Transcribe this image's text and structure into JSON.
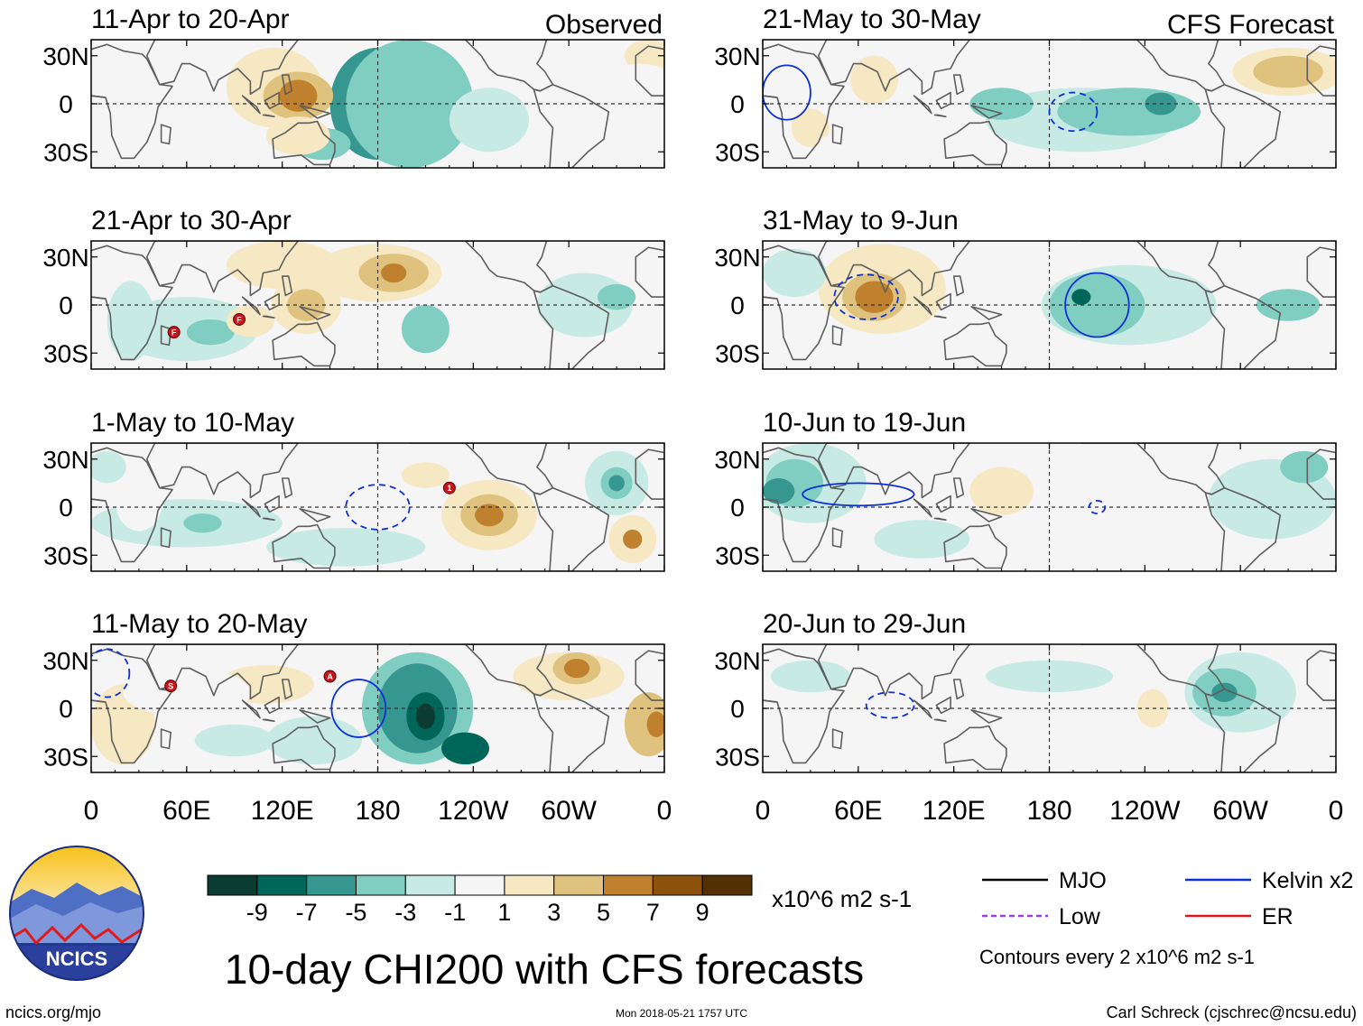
{
  "chart_data": {
    "type": "heatmap",
    "title": "10-day CHI200 with CFS forecasts",
    "variable": "CHI200",
    "units": "x10^6 m2 s-1",
    "observed_label": "Observed",
    "forecast_label": "CFS Forecast",
    "x_ticks": [
      "0",
      "60E",
      "120E",
      "180",
      "120W",
      "60W",
      "0"
    ],
    "x_tick_values": [
      0,
      60,
      120,
      180,
      240,
      300,
      360
    ],
    "y_ticks": [
      "30N",
      "0",
      "30S"
    ],
    "y_tick_values": [
      30,
      0,
      -30
    ],
    "xlim": [
      0,
      360
    ],
    "ylim": [
      -40,
      40
    ],
    "colorbar": {
      "labels": [
        "-9",
        "-7",
        "-5",
        "-3",
        "-1",
        "1",
        "3",
        "5",
        "7",
        "9"
      ],
      "levels": [
        -9,
        -7,
        -5,
        -3,
        -1,
        1,
        3,
        5,
        7,
        9
      ],
      "colors": [
        "#0b3c32",
        "#00665a",
        "#35978f",
        "#80cdc1",
        "#c7eae5",
        "#f5f5f5",
        "#f6e8c3",
        "#dfc27d",
        "#bf812d",
        "#8c510a",
        "#543005"
      ]
    },
    "panels": [
      {
        "period": "11-Apr to 20-Apr",
        "kind": "observed",
        "blobs": [
          {
            "lon": 180,
            "lat": 0,
            "rx": 30,
            "ry": 35,
            "v": -5
          },
          {
            "lon": 145,
            "lat": -25,
            "rx": 18,
            "ry": 10,
            "v": -3
          },
          {
            "lon": 205,
            "lat": 0,
            "rx": 16,
            "ry": 14,
            "v": -9
          },
          {
            "lon": 195,
            "lat": -10,
            "rx": 25,
            "ry": 20,
            "v": -5
          },
          {
            "lon": 210,
            "lat": 5,
            "rx": 22,
            "ry": 20,
            "v": -5
          },
          {
            "lon": 200,
            "lat": 0,
            "rx": 40,
            "ry": 40,
            "v": -3
          },
          {
            "lon": 250,
            "lat": -10,
            "rx": 25,
            "ry": 20,
            "v": -1
          },
          {
            "lon": 115,
            "lat": 10,
            "rx": 30,
            "ry": 25,
            "v": 3
          },
          {
            "lon": 130,
            "lat": 5,
            "rx": 22,
            "ry": 15,
            "v": 5
          },
          {
            "lon": 130,
            "lat": 5,
            "rx": 12,
            "ry": 10,
            "v": 7
          },
          {
            "lon": 130,
            "lat": -20,
            "rx": 20,
            "ry": 12,
            "v": 3
          },
          {
            "lon": 20,
            "lat": -10,
            "rx": 25,
            "ry": 20,
            "v": 1
          },
          {
            "lon": 320,
            "lat": 10,
            "rx": 25,
            "ry": 15,
            "v": 1
          },
          {
            "lon": 350,
            "lat": 30,
            "rx": 15,
            "ry": 10,
            "v": 3
          },
          {
            "lon": 345,
            "lat": 15,
            "rx": 20,
            "ry": 10,
            "v": 1
          }
        ],
        "contours": [],
        "storms": []
      },
      {
        "period": "21-Apr to 30-Apr",
        "kind": "observed",
        "blobs": [
          {
            "lon": 120,
            "lat": 25,
            "rx": 35,
            "ry": 15,
            "v": 3
          },
          {
            "lon": 180,
            "lat": 20,
            "rx": 40,
            "ry": 18,
            "v": 3
          },
          {
            "lon": 190,
            "lat": 20,
            "rx": 22,
            "ry": 12,
            "v": 5
          },
          {
            "lon": 190,
            "lat": 20,
            "rx": 8,
            "ry": 6,
            "v": 7
          },
          {
            "lon": 135,
            "lat": 0,
            "rx": 22,
            "ry": 18,
            "v": 3
          },
          {
            "lon": 135,
            "lat": 0,
            "rx": 12,
            "ry": 10,
            "v": 5
          },
          {
            "lon": 60,
            "lat": -15,
            "rx": 45,
            "ry": 20,
            "v": -1
          },
          {
            "lon": 75,
            "lat": -17,
            "rx": 15,
            "ry": 8,
            "v": -3
          },
          {
            "lon": 25,
            "lat": -10,
            "rx": 15,
            "ry": 25,
            "v": -1
          },
          {
            "lon": 210,
            "lat": -15,
            "rx": 15,
            "ry": 15,
            "v": -3
          },
          {
            "lon": 310,
            "lat": 0,
            "rx": 30,
            "ry": 20,
            "v": -1
          },
          {
            "lon": 330,
            "lat": 5,
            "rx": 12,
            "ry": 8,
            "v": -3
          },
          {
            "lon": 100,
            "lat": -10,
            "rx": 15,
            "ry": 10,
            "v": 3
          },
          {
            "lon": 270,
            "lat": 30,
            "rx": 30,
            "ry": 10,
            "v": 1
          }
        ],
        "contours": [],
        "storms": [
          {
            "lon": 52,
            "lat": -17,
            "label": "F"
          },
          {
            "lon": 93,
            "lat": -9,
            "label": "F"
          }
        ]
      },
      {
        "period": "1-May to 10-May",
        "kind": "observed",
        "blobs": [
          {
            "lon": 60,
            "lat": -10,
            "rx": 60,
            "ry": 15,
            "v": -1
          },
          {
            "lon": 70,
            "lat": -10,
            "rx": 12,
            "ry": 6,
            "v": -3
          },
          {
            "lon": 160,
            "lat": -25,
            "rx": 50,
            "ry": 12,
            "v": -1
          },
          {
            "lon": 190,
            "lat": 20,
            "rx": 45,
            "ry": 12,
            "v": 1
          },
          {
            "lon": 210,
            "lat": 20,
            "rx": 15,
            "ry": 8,
            "v": 3
          },
          {
            "lon": 250,
            "lat": -5,
            "rx": 30,
            "ry": 22,
            "v": 3
          },
          {
            "lon": 250,
            "lat": -5,
            "rx": 18,
            "ry": 13,
            "v": 5
          },
          {
            "lon": 250,
            "lat": -5,
            "rx": 9,
            "ry": 7,
            "v": 7
          },
          {
            "lon": 330,
            "lat": 15,
            "rx": 20,
            "ry": 20,
            "v": -1
          },
          {
            "lon": 330,
            "lat": 15,
            "rx": 10,
            "ry": 10,
            "v": -3
          },
          {
            "lon": 330,
            "lat": 15,
            "rx": 5,
            "ry": 5,
            "v": -5
          },
          {
            "lon": 340,
            "lat": -20,
            "rx": 15,
            "ry": 15,
            "v": 3
          },
          {
            "lon": 340,
            "lat": -20,
            "rx": 6,
            "ry": 6,
            "v": 7
          },
          {
            "lon": 30,
            "lat": 5,
            "rx": 15,
            "ry": 20,
            "v": 1
          },
          {
            "lon": 120,
            "lat": 30,
            "rx": 20,
            "ry": 8,
            "v": 1
          },
          {
            "lon": 10,
            "lat": 25,
            "rx": 12,
            "ry": 10,
            "v": -1
          }
        ],
        "contours": [
          {
            "lon": 180,
            "lat": 0,
            "rx": 20,
            "ry": 14,
            "style": "dashed"
          }
        ],
        "storms": [
          {
            "lon": 225,
            "lat": 12,
            "label": "1"
          }
        ]
      },
      {
        "period": "11-May to 20-May",
        "kind": "observed",
        "blobs": [
          {
            "lon": 205,
            "lat": 0,
            "rx": 35,
            "ry": 35,
            "v": -3
          },
          {
            "lon": 205,
            "lat": 0,
            "rx": 25,
            "ry": 28,
            "v": -5
          },
          {
            "lon": 210,
            "lat": -5,
            "rx": 12,
            "ry": 15,
            "v": -7
          },
          {
            "lon": 210,
            "lat": -5,
            "rx": 6,
            "ry": 8,
            "v": -9
          },
          {
            "lon": 235,
            "lat": -25,
            "rx": 15,
            "ry": 10,
            "v": -7
          },
          {
            "lon": 140,
            "lat": -20,
            "rx": 30,
            "ry": 15,
            "v": -1
          },
          {
            "lon": 110,
            "lat": 15,
            "rx": 30,
            "ry": 12,
            "v": 3
          },
          {
            "lon": 300,
            "lat": 20,
            "rx": 35,
            "ry": 15,
            "v": 3
          },
          {
            "lon": 305,
            "lat": 25,
            "rx": 15,
            "ry": 10,
            "v": 5
          },
          {
            "lon": 305,
            "lat": 25,
            "rx": 8,
            "ry": 6,
            "v": 7
          },
          {
            "lon": 20,
            "lat": -10,
            "rx": 20,
            "ry": 25,
            "v": 3
          },
          {
            "lon": 350,
            "lat": -10,
            "rx": 15,
            "ry": 20,
            "v": 5
          },
          {
            "lon": 355,
            "lat": -10,
            "rx": 6,
            "ry": 8,
            "v": 7
          },
          {
            "lon": 60,
            "lat": 10,
            "rx": 40,
            "ry": 15,
            "v": 1
          },
          {
            "lon": 90,
            "lat": -20,
            "rx": 25,
            "ry": 10,
            "v": -1
          }
        ],
        "contours": [
          {
            "lon": 168,
            "lat": 0,
            "rx": 17,
            "ry": 18,
            "style": "solid"
          },
          {
            "lon": 10,
            "lat": 22,
            "rx": 14,
            "ry": 15,
            "style": "dashed"
          }
        ],
        "storms": [
          {
            "lon": 50,
            "lat": 14,
            "label": "S"
          },
          {
            "lon": 150,
            "lat": 20,
            "label": "A"
          }
        ]
      },
      {
        "period": "21-May to 30-May",
        "kind": "forecast",
        "blobs": [
          {
            "lon": 20,
            "lat": -10,
            "rx": 25,
            "ry": 25,
            "v": 1
          },
          {
            "lon": 30,
            "lat": -15,
            "rx": 12,
            "ry": 12,
            "v": 3
          },
          {
            "lon": 70,
            "lat": 15,
            "rx": 15,
            "ry": 15,
            "v": 3
          },
          {
            "lon": 330,
            "lat": 20,
            "rx": 35,
            "ry": 15,
            "v": 3
          },
          {
            "lon": 330,
            "lat": 20,
            "rx": 22,
            "ry": 10,
            "v": 5
          },
          {
            "lon": 200,
            "lat": -10,
            "rx": 60,
            "ry": 20,
            "v": -1
          },
          {
            "lon": 230,
            "lat": -5,
            "rx": 45,
            "ry": 15,
            "v": -3
          },
          {
            "lon": 250,
            "lat": 0,
            "rx": 10,
            "ry": 7,
            "v": -5
          },
          {
            "lon": 150,
            "lat": 0,
            "rx": 20,
            "ry": 10,
            "v": -3
          },
          {
            "lon": 110,
            "lat": 10,
            "rx": 20,
            "ry": 10,
            "v": 1
          },
          {
            "lon": 60,
            "lat": -25,
            "rx": 25,
            "ry": 8,
            "v": 1
          }
        ],
        "contours": [
          {
            "lon": 15,
            "lat": 7,
            "rx": 15,
            "ry": 17,
            "style": "solid"
          },
          {
            "lon": 195,
            "lat": -5,
            "rx": 15,
            "ry": 12,
            "style": "dashed"
          }
        ],
        "storms": []
      },
      {
        "period": "31-May to 9-Jun",
        "kind": "forecast",
        "blobs": [
          {
            "lon": 75,
            "lat": 10,
            "rx": 40,
            "ry": 28,
            "v": 3
          },
          {
            "lon": 70,
            "lat": 5,
            "rx": 20,
            "ry": 15,
            "v": 5
          },
          {
            "lon": 70,
            "lat": 5,
            "rx": 12,
            "ry": 10,
            "v": 7
          },
          {
            "lon": 230,
            "lat": 0,
            "rx": 55,
            "ry": 25,
            "v": -1
          },
          {
            "lon": 210,
            "lat": 0,
            "rx": 30,
            "ry": 20,
            "v": -3
          },
          {
            "lon": 200,
            "lat": 5,
            "rx": 6,
            "ry": 5,
            "v": -7
          },
          {
            "lon": 330,
            "lat": 0,
            "rx": 20,
            "ry": 10,
            "v": -3
          },
          {
            "lon": 20,
            "lat": 20,
            "rx": 20,
            "ry": 15,
            "v": -1
          },
          {
            "lon": 300,
            "lat": 15,
            "rx": 20,
            "ry": 10,
            "v": 1
          },
          {
            "lon": 340,
            "lat": -25,
            "rx": 25,
            "ry": 10,
            "v": 1
          }
        ],
        "contours": [
          {
            "lon": 65,
            "lat": 5,
            "rx": 20,
            "ry": 14,
            "style": "dashed"
          },
          {
            "lon": 210,
            "lat": 0,
            "rx": 20,
            "ry": 20,
            "style": "solid"
          }
        ],
        "storms": []
      },
      {
        "period": "10-Jun to 19-Jun",
        "kind": "forecast",
        "blobs": [
          {
            "lon": 30,
            "lat": 15,
            "rx": 35,
            "ry": 25,
            "v": -1
          },
          {
            "lon": 20,
            "lat": 15,
            "rx": 18,
            "ry": 15,
            "v": -3
          },
          {
            "lon": 10,
            "lat": 10,
            "rx": 10,
            "ry": 8,
            "v": -5
          },
          {
            "lon": 170,
            "lat": 10,
            "rx": 50,
            "ry": 25,
            "v": 1
          },
          {
            "lon": 150,
            "lat": 10,
            "rx": 20,
            "ry": 15,
            "v": 3
          },
          {
            "lon": 320,
            "lat": 5,
            "rx": 40,
            "ry": 25,
            "v": -1
          },
          {
            "lon": 100,
            "lat": -20,
            "rx": 30,
            "ry": 12,
            "v": -1
          },
          {
            "lon": 340,
            "lat": 25,
            "rx": 15,
            "ry": 10,
            "v": -3
          }
        ],
        "contours": [
          {
            "lon": 60,
            "lat": 8,
            "rx": 35,
            "ry": 7,
            "style": "solid"
          },
          {
            "lon": 210,
            "lat": 0,
            "rx": 5,
            "ry": 4,
            "style": "dashed"
          }
        ],
        "storms": []
      },
      {
        "period": "20-Jun to 29-Jun",
        "kind": "forecast",
        "blobs": [
          {
            "lon": 60,
            "lat": 0,
            "rx": 50,
            "ry": 20,
            "v": 1
          },
          {
            "lon": 240,
            "lat": 0,
            "rx": 30,
            "ry": 20,
            "v": 1
          },
          {
            "lon": 245,
            "lat": 0,
            "rx": 10,
            "ry": 12,
            "v": 3
          },
          {
            "lon": 300,
            "lat": 10,
            "rx": 35,
            "ry": 25,
            "v": -1
          },
          {
            "lon": 290,
            "lat": 10,
            "rx": 20,
            "ry": 15,
            "v": -3
          },
          {
            "lon": 290,
            "lat": 10,
            "rx": 8,
            "ry": 6,
            "v": -5
          },
          {
            "lon": 30,
            "lat": 20,
            "rx": 25,
            "ry": 10,
            "v": -1
          },
          {
            "lon": 180,
            "lat": 20,
            "rx": 40,
            "ry": 10,
            "v": -1
          },
          {
            "lon": 150,
            "lat": -20,
            "rx": 25,
            "ry": 12,
            "v": 1
          }
        ],
        "contours": [
          {
            "lon": 80,
            "lat": 2,
            "rx": 15,
            "ry": 8,
            "style": "dashed"
          }
        ],
        "storms": []
      }
    ]
  },
  "logo": {
    "text": "NCICS"
  },
  "legend": {
    "items": [
      {
        "label": "MJO",
        "color": "#000000",
        "style": "solid"
      },
      {
        "label": "Kelvin x2",
        "color": "#0d2fd6",
        "style": "solid"
      },
      {
        "label": "Low",
        "color": "#9b3ddb",
        "style": "dashed"
      },
      {
        "label": "ER",
        "color": "#e0141c",
        "style": "solid"
      }
    ],
    "contour_note": "Contours every 2 x10^6 m2 s-1"
  },
  "footer": {
    "left": "ncics.org/mjo",
    "center": "Mon 2018-05-21 1757 UTC",
    "right": "Carl Schreck (cjschrec@ncsu.edu)"
  }
}
